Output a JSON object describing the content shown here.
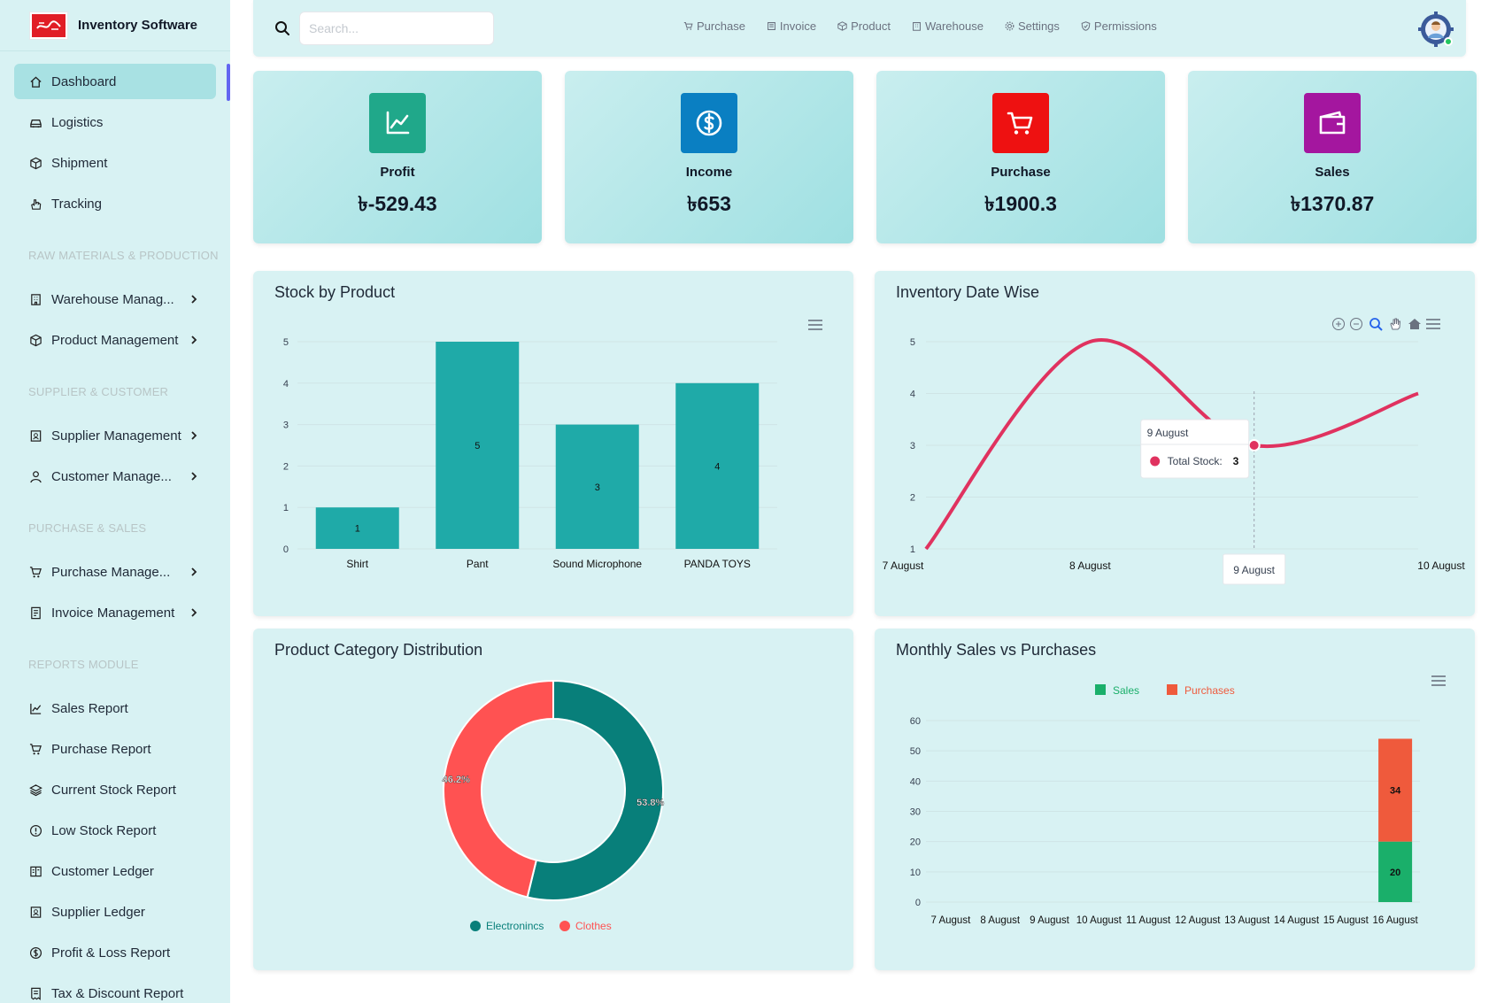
{
  "app": {
    "name": "Inventory Software"
  },
  "sidebar": {
    "items": [
      {
        "label": "Dashboard",
        "icon": "home-icon"
      },
      {
        "label": "Logistics",
        "icon": "car-icon"
      },
      {
        "label": "Shipment",
        "icon": "box-icon"
      },
      {
        "label": "Tracking",
        "icon": "hand-icon"
      },
      {
        "label": "Warehouse Manag...",
        "icon": "building-icon"
      },
      {
        "label": "Product Management",
        "icon": "box-icon"
      },
      {
        "label": "Supplier Management",
        "icon": "supplier-icon"
      },
      {
        "label": "Customer Manage...",
        "icon": "user-icon"
      },
      {
        "label": "Purchase Manage...",
        "icon": "cart-icon"
      },
      {
        "label": "Invoice Management",
        "icon": "invoice-icon"
      },
      {
        "label": "Sales Report",
        "icon": "chart-line-icon"
      },
      {
        "label": "Purchase Report",
        "icon": "cart-icon"
      },
      {
        "label": "Current Stock Report",
        "icon": "layers-icon"
      },
      {
        "label": "Low Stock Report",
        "icon": "alert-icon"
      },
      {
        "label": "Customer Ledger",
        "icon": "ledger-icon"
      },
      {
        "label": "Supplier Ledger",
        "icon": "supplier-icon"
      },
      {
        "label": "Profit & Loss Report",
        "icon": "dollar-icon"
      },
      {
        "label": "Tax & Discount Report",
        "icon": "receipt-icon"
      }
    ],
    "sections": [
      "RAW MATERIALS & PRODUCTION",
      "SUPPLIER & CUSTOMER",
      "PURCHASE & SALES",
      "REPORTS MODULE"
    ]
  },
  "topbar": {
    "search_placeholder": "Search...",
    "links": [
      "Purchase",
      "Invoice",
      "Product",
      "Warehouse",
      "Settings",
      "Permissions"
    ]
  },
  "stats": [
    {
      "label": "Profit",
      "value": "৳-529.43",
      "color": "#20a88a",
      "icon": "chart-line-icon"
    },
    {
      "label": "Income",
      "value": "৳653",
      "color": "#0a7fc2",
      "icon": "dollar-icon"
    },
    {
      "label": "Purchase",
      "value": "৳1900.3",
      "color": "#ee1111",
      "icon": "cart-icon"
    },
    {
      "label": "Sales",
      "value": "৳1370.87",
      "color": "#a4169f",
      "icon": "wallet-icon"
    }
  ],
  "cards": {
    "stock": "Stock by Product",
    "inventory": "Inventory Date Wise",
    "category": "Product Category Distribution",
    "monthly": "Monthly Sales vs Purchases"
  },
  "chart_data": [
    {
      "type": "bar",
      "title": "Stock by Product",
      "categories": [
        "Shirt",
        "Pant",
        "Sound Microphone",
        "PANDA TOYS"
      ],
      "values": [
        1,
        5,
        3,
        4
      ],
      "yticks": [
        0,
        1,
        2,
        3,
        4,
        5
      ],
      "ylim": [
        0,
        5
      ],
      "color": "#1faaa8"
    },
    {
      "type": "line",
      "title": "Inventory Date Wise",
      "x": [
        "7 August",
        "8 August",
        "9 August",
        "10 August"
      ],
      "series": [
        {
          "name": "Total Stock",
          "values": [
            1,
            5,
            3,
            4
          ]
        }
      ],
      "yticks": [
        1,
        2,
        3,
        4,
        5
      ],
      "ylim": [
        1,
        5
      ],
      "color": "#e0325f",
      "tooltip": {
        "title": "9 August",
        "label": "Total Stock:",
        "value": "3"
      },
      "crosshair_label": "9 August"
    },
    {
      "type": "pie",
      "title": "Product Category Distribution",
      "labels": [
        "Electronincs",
        "Clothes"
      ],
      "values": [
        53.8,
        46.2
      ],
      "display": [
        "53.8%",
        "46.2%"
      ],
      "colors": [
        "#087f7a",
        "#ff5252"
      ]
    },
    {
      "type": "bar",
      "title": "Monthly Sales vs Purchases",
      "categories": [
        "7 August",
        "8 August",
        "9 August",
        "10 August",
        "11 August",
        "12 August",
        "13 August",
        "14 August",
        "15 August",
        "16 August"
      ],
      "series": [
        {
          "name": "Sales",
          "values": [
            0,
            0,
            0,
            0,
            0,
            0,
            0,
            0,
            0,
            20
          ],
          "color": "#1aaf6a"
        },
        {
          "name": "Purchases",
          "values": [
            0,
            0,
            0,
            0,
            0,
            0,
            0,
            0,
            0,
            34
          ],
          "color": "#ef5a3c"
        }
      ],
      "stacked": true,
      "yticks": [
        0,
        10,
        20,
        30,
        40,
        50,
        60
      ],
      "ylim": [
        0,
        60
      ]
    }
  ]
}
